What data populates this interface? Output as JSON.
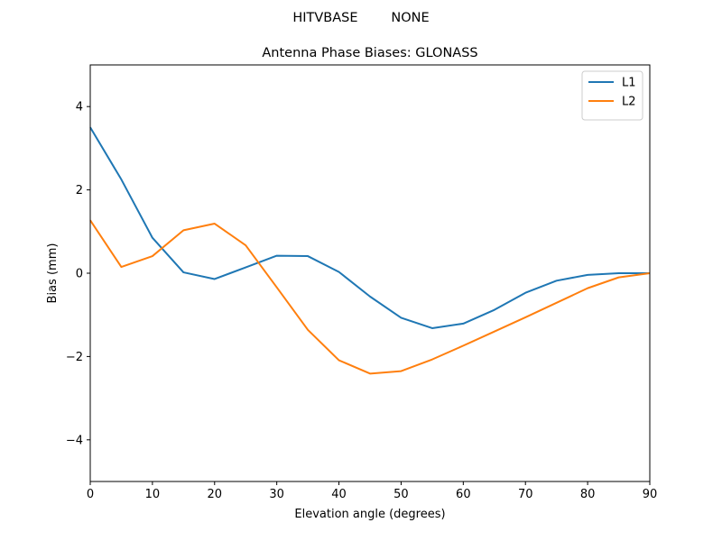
{
  "suptitle": "HITVBASE        NONE",
  "chart_data": {
    "type": "line",
    "title": "Antenna Phase Biases: GLONASS",
    "xlabel": "Elevation angle (degrees)",
    "ylabel": "Bias (mm)",
    "xlim": [
      0,
      90
    ],
    "ylim": [
      -5,
      5
    ],
    "xticks": [
      0,
      10,
      20,
      30,
      40,
      50,
      60,
      70,
      80,
      90
    ],
    "xtick_labels": [
      "0",
      "10",
      "20",
      "30",
      "40",
      "50",
      "60",
      "70",
      "80",
      "90"
    ],
    "yticks": [
      -4,
      -2,
      0,
      2,
      4
    ],
    "ytick_labels": [
      "−4",
      "−2",
      "0",
      "2",
      "4"
    ],
    "grid": false,
    "legend_position": "top-right",
    "x": [
      0,
      5,
      10,
      15,
      20,
      25,
      30,
      35,
      40,
      45,
      50,
      55,
      60,
      65,
      70,
      75,
      80,
      85,
      90
    ],
    "series": [
      {
        "name": "L1",
        "color": "#1f77b4",
        "values": [
          3.5,
          2.25,
          0.85,
          0.02,
          -0.14,
          0.14,
          0.42,
          0.41,
          0.03,
          -0.56,
          -1.07,
          -1.32,
          -1.21,
          -0.88,
          -0.47,
          -0.18,
          -0.04,
          0.0,
          0.0
        ]
      },
      {
        "name": "L2",
        "color": "#ff7f0e",
        "values": [
          1.27,
          0.15,
          0.41,
          1.03,
          1.19,
          0.67,
          -0.34,
          -1.36,
          -2.09,
          -2.41,
          -2.35,
          -2.07,
          -1.74,
          -1.4,
          -1.06,
          -0.71,
          -0.36,
          -0.1,
          0.0
        ]
      }
    ]
  }
}
